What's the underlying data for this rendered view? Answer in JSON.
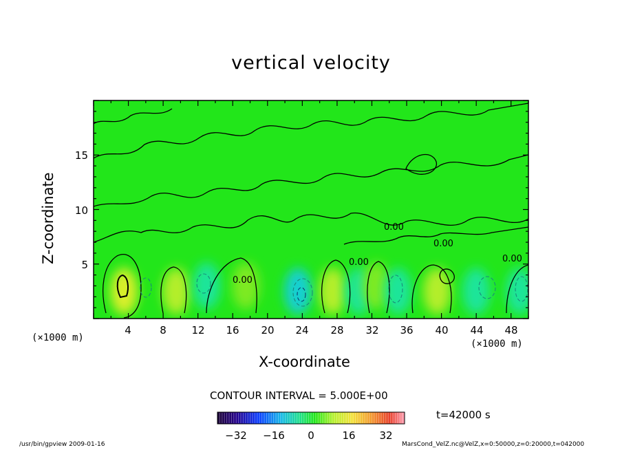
{
  "chart_data": {
    "type": "heatmap",
    "title": "vertical velocity",
    "xlabel": "X-coordinate",
    "ylabel": "Z-coordinate",
    "x_units_left": "(×1000 m)",
    "x_units_right": "(×1000 m)",
    "x_ticks": [
      "4",
      "8",
      "12",
      "16",
      "20",
      "24",
      "28",
      "32",
      "36",
      "40",
      "44",
      "48"
    ],
    "y_ticks": [
      "5",
      "10",
      "15"
    ],
    "xlim": [
      0,
      50
    ],
    "ylim": [
      0,
      20
    ],
    "contour_interval_text": "CONTOUR INTERVAL = 5.000E+00",
    "contour_labels": [
      "0.00",
      "0.00",
      "0.00",
      "0.00",
      "0.00"
    ],
    "colorbar": {
      "ticks": [
        "−32",
        "−16",
        "0",
        "16",
        "32"
      ],
      "range": [
        -40,
        40
      ]
    },
    "cells": [
      {
        "x": 3.5,
        "z": 2.5,
        "w": 12
      },
      {
        "x": 9.5,
        "z": 2.5,
        "w": 7
      },
      {
        "x": 13.0,
        "z": 3.0,
        "w": -3
      },
      {
        "x": 17.5,
        "z": 3.0,
        "w": 2
      },
      {
        "x": 23.5,
        "z": 2.5,
        "w": -8
      },
      {
        "x": 27.5,
        "z": 2.5,
        "w": 8
      },
      {
        "x": 30.5,
        "z": 2.5,
        "w": -2
      },
      {
        "x": 32.5,
        "z": 3.0,
        "w": 3
      },
      {
        "x": 35.0,
        "z": 2.5,
        "w": -4
      },
      {
        "x": 39.5,
        "z": 2.5,
        "w": 9
      },
      {
        "x": 44.0,
        "z": 2.5,
        "w": -5
      },
      {
        "x": 49.0,
        "z": 2.5,
        "w": -4
      }
    ]
  },
  "time": "t=42000 s",
  "footer": {
    "left": "/usr/bin/gpview  2009-01-16",
    "right": "MarsCond_VelZ.nc@VelZ,x=0:50000,z=0:20000,t=042000"
  },
  "colors": {
    "background_field": "#22e61a",
    "contour": "#000000"
  }
}
